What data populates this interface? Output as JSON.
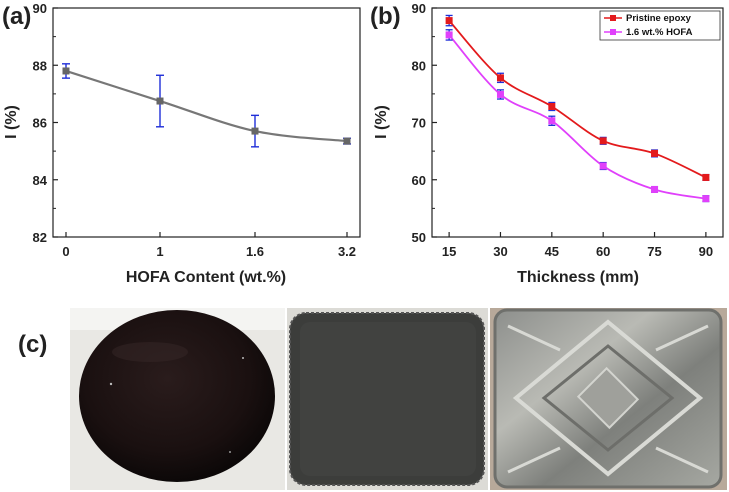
{
  "panel_labels": {
    "a": "(a)",
    "b": "(b)",
    "c": "(c)"
  },
  "colors": {
    "panel_a_line": "#777777",
    "panel_a_marker": "#666666",
    "error_bar": "#1f2ed8",
    "pristine": "#e31a1c",
    "hofa": "#e040fb"
  },
  "chart_data": [
    {
      "type": "line",
      "title": "",
      "xlabel": "HOFA Content (wt.%)",
      "ylabel": "I (%)",
      "categories": [
        "0",
        "1",
        "1.6",
        "3.2"
      ],
      "x": [
        0,
        1,
        1.6,
        3.2
      ],
      "ylim": [
        82,
        90
      ],
      "yticks": [
        "82",
        "84",
        "86",
        "88",
        "90"
      ],
      "grid": false,
      "series": [
        {
          "values": [
            87.8,
            86.75,
            85.7,
            85.35
          ],
          "errors": [
            0.25,
            0.9,
            0.55,
            0.1
          ]
        }
      ]
    },
    {
      "type": "line",
      "title": "",
      "xlabel": "Thickness (mm)",
      "ylabel": "I (%)",
      "x": [
        15,
        30,
        45,
        60,
        75,
        90
      ],
      "xticks": [
        "15",
        "30",
        "45",
        "60",
        "75",
        "90"
      ],
      "xlim": [
        10,
        95
      ],
      "ylim": [
        50,
        90
      ],
      "yticks": [
        "50",
        "60",
        "70",
        "80",
        "90"
      ],
      "grid": false,
      "legend": "top-right",
      "series": [
        {
          "name": "Pristine epoxy",
          "values": [
            87.8,
            77.8,
            72.8,
            66.8,
            64.6,
            60.4
          ],
          "errors": [
            0.9,
            0.8,
            0.7,
            0.6,
            0.6,
            0.5
          ]
        },
        {
          "name": "1.6 wt.% HOFA",
          "values": [
            85.3,
            74.9,
            70.3,
            62.4,
            58.3,
            56.7
          ],
          "errors": [
            0.9,
            0.8,
            0.8,
            0.6,
            0.5,
            0.5
          ]
        }
      ]
    }
  ]
}
